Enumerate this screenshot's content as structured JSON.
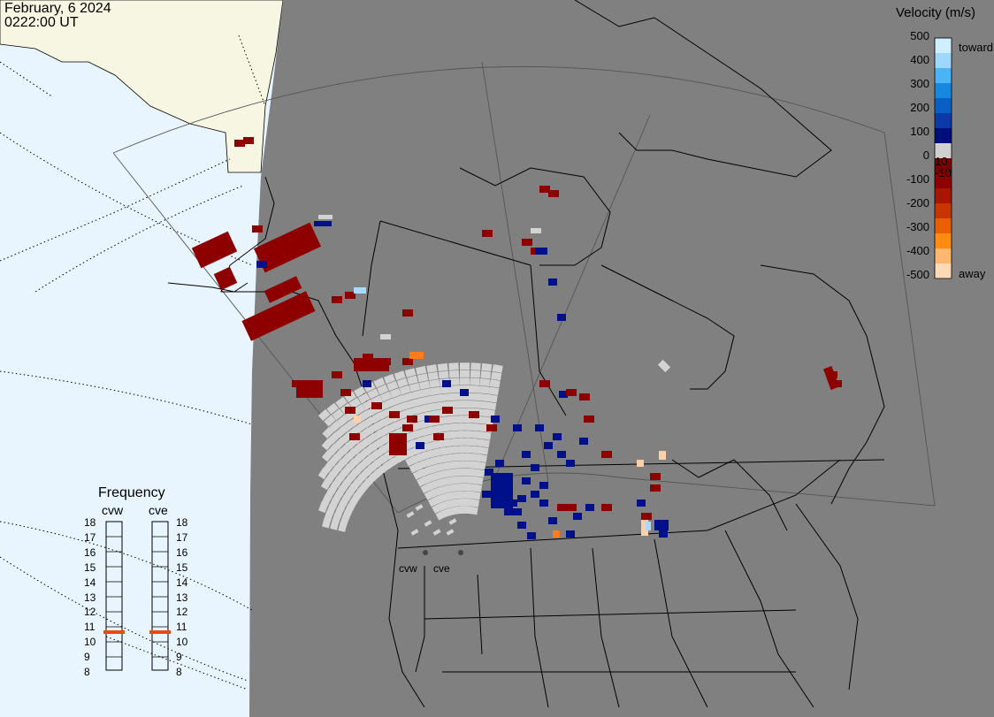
{
  "header": {
    "date": "February, 6 2024",
    "time": "0222:00 UT"
  },
  "colorbar": {
    "title": "Velocity (m/s)",
    "ticks": [
      "500",
      "400",
      "300",
      "200",
      "100",
      "0",
      "-100",
      "-200",
      "-300",
      "-400",
      "-500"
    ],
    "inner_labels": [
      "10",
      "-10"
    ],
    "toward_label": "toward",
    "away_label": "away",
    "colors_top_to_bottom": [
      "#cfeeff",
      "#9fd8ff",
      "#4ab4f5",
      "#1788e0",
      "#0a5fc4",
      "#0a3aa8",
      "#000e7a",
      "#d0d0d0",
      "#7a0000",
      "#8e0000",
      "#a81500",
      "#c83500",
      "#e86000",
      "#ff8c10",
      "#ffb870",
      "#ffd9b5"
    ]
  },
  "frequency": {
    "title": "Frequency",
    "radars": [
      "cvw",
      "cve"
    ],
    "scale": [
      "18",
      "17",
      "16",
      "15",
      "14",
      "13",
      "12",
      "11",
      "10",
      "9",
      "8"
    ],
    "values_mhz": [
      10.8,
      10.8
    ],
    "indicator_color": "#e84a10"
  },
  "sites": [
    "cvw",
    "cve"
  ],
  "map": {
    "ocean_color": "#e8f5ff",
    "land_color": "#f7f6e3",
    "night_color": "#808080",
    "ground_scatter_color": "#d3d3d3"
  }
}
